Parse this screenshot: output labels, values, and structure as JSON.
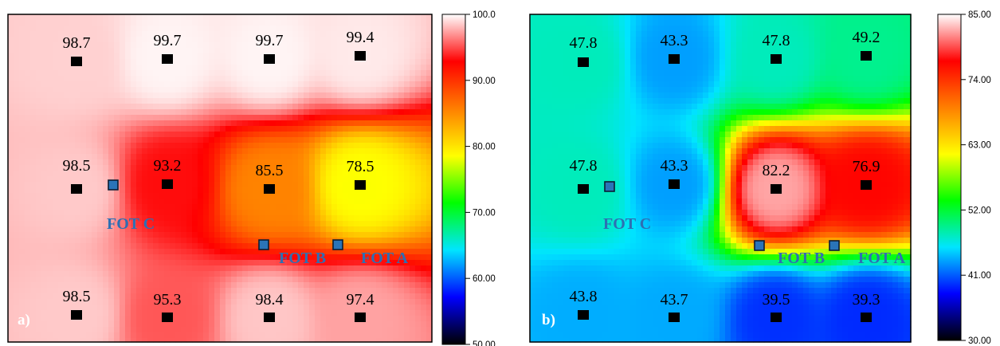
{
  "chart_data": [
    {
      "type": "heatmap",
      "panel_label": "a)",
      "colorbar": {
        "min": 50.0,
        "max": 100.0,
        "ticks": [
          "50.00",
          "60.00",
          "70.00",
          "80.00",
          "90.00",
          "100.0"
        ],
        "colors": [
          "#000000",
          "#0000ff",
          "#00e5ff",
          "#00ff00",
          "#ffff00",
          "#ff7f00",
          "#ff0000",
          "#ffffff"
        ]
      },
      "sensors": [
        {
          "value": 98.7,
          "label": "98.7"
        },
        {
          "value": 99.7,
          "label": "99.7"
        },
        {
          "value": 99.7,
          "label": "99.7"
        },
        {
          "value": 99.4,
          "label": "99.4"
        },
        {
          "value": 98.5,
          "label": "98.5"
        },
        {
          "value": 93.2,
          "label": "93.2"
        },
        {
          "value": 85.5,
          "label": "85.5"
        },
        {
          "value": 78.5,
          "label": "78.5"
        },
        {
          "value": 98.5,
          "label": "98.5"
        },
        {
          "value": 95.3,
          "label": "95.3"
        },
        {
          "value": 98.4,
          "label": "98.4"
        },
        {
          "value": 97.4,
          "label": "97.4"
        }
      ],
      "fots": [
        "FOT C",
        "FOT B",
        "FOT A"
      ]
    },
    {
      "type": "heatmap",
      "panel_label": "b)",
      "colorbar": {
        "min": 30.0,
        "max": 85.0,
        "ticks": [
          "30.00",
          "41.00",
          "52.00",
          "63.00",
          "74.00",
          "85.00"
        ],
        "colors": [
          "#000000",
          "#0000ff",
          "#00e5ff",
          "#00ff00",
          "#ffff00",
          "#ff7f00",
          "#ff0000",
          "#ffffff"
        ]
      },
      "sensors": [
        {
          "value": 47.8,
          "label": "47.8"
        },
        {
          "value": 43.3,
          "label": "43.3"
        },
        {
          "value": 47.8,
          "label": "47.8"
        },
        {
          "value": 49.2,
          "label": "49.2"
        },
        {
          "value": 47.8,
          "label": "47.8"
        },
        {
          "value": 43.3,
          "label": "43.3"
        },
        {
          "value": 82.2,
          "label": "82.2"
        },
        {
          "value": 76.9,
          "label": "76.9"
        },
        {
          "value": 43.8,
          "label": "43.8"
        },
        {
          "value": 43.7,
          "label": "43.7"
        },
        {
          "value": 39.5,
          "label": "39.5"
        },
        {
          "value": 39.3,
          "label": "39.3"
        }
      ],
      "fots": [
        "FOT C",
        "FOT B",
        "FOT A"
      ]
    }
  ]
}
